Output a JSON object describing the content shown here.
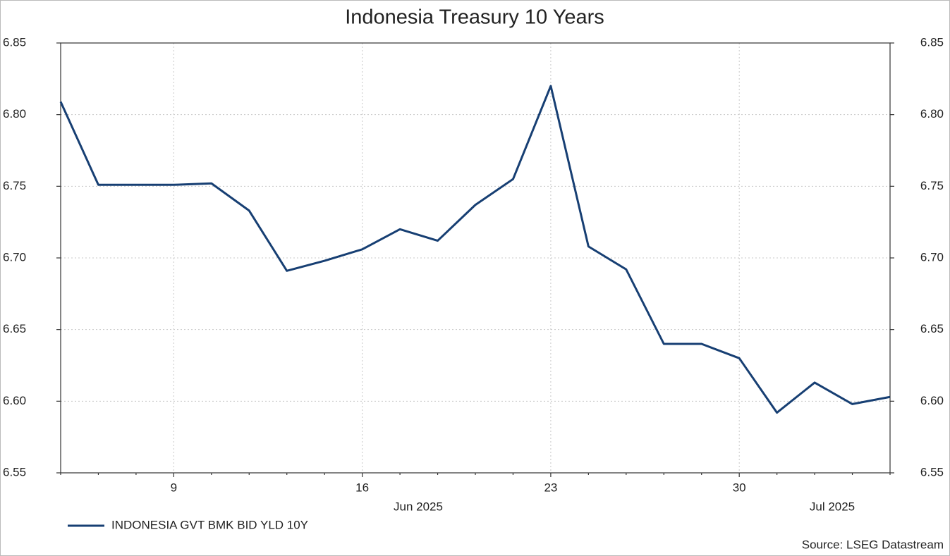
{
  "chart_data": {
    "type": "line",
    "title": "Indonesia Treasury 10 Years",
    "categories": [
      null,
      null,
      null,
      "9",
      null,
      null,
      null,
      null,
      "16",
      null,
      null,
      null,
      null,
      "23",
      null,
      null,
      null,
      null,
      "30",
      null,
      null,
      null,
      null
    ],
    "x_group_labels": [
      "Jun 2025",
      "Jul 2025"
    ],
    "series": [
      {
        "name": "INDONESIA GVT BMK BID YLD 10Y",
        "color": "#173f73",
        "values": [
          6.809,
          6.751,
          6.751,
          6.751,
          6.752,
          6.733,
          6.691,
          6.698,
          6.706,
          6.72,
          6.712,
          6.737,
          6.755,
          6.82,
          6.708,
          6.692,
          6.64,
          6.64,
          6.63,
          6.592,
          6.613,
          6.598,
          6.603
        ]
      }
    ],
    "ylim": [
      6.55,
      6.85
    ],
    "yticks": [
      6.55,
      {
        "value": 6.6,
        "label": "6.60"
      },
      6.65,
      {
        "value": 6.7,
        "label": "6.70"
      },
      6.75,
      {
        "value": 6.8,
        "label": "6.80"
      },
      6.85
    ],
    "y2lim": [
      6.55,
      6.85
    ],
    "y2ticks": [
      6.55,
      {
        "value": 6.6,
        "label": "6.60"
      },
      6.65,
      {
        "value": 6.7,
        "label": "6.70"
      },
      6.75,
      {
        "value": 6.8,
        "label": "6.80"
      },
      6.85
    ],
    "grid": true,
    "legend": "bottom-left",
    "source": "Source: LSEG Datastream"
  }
}
